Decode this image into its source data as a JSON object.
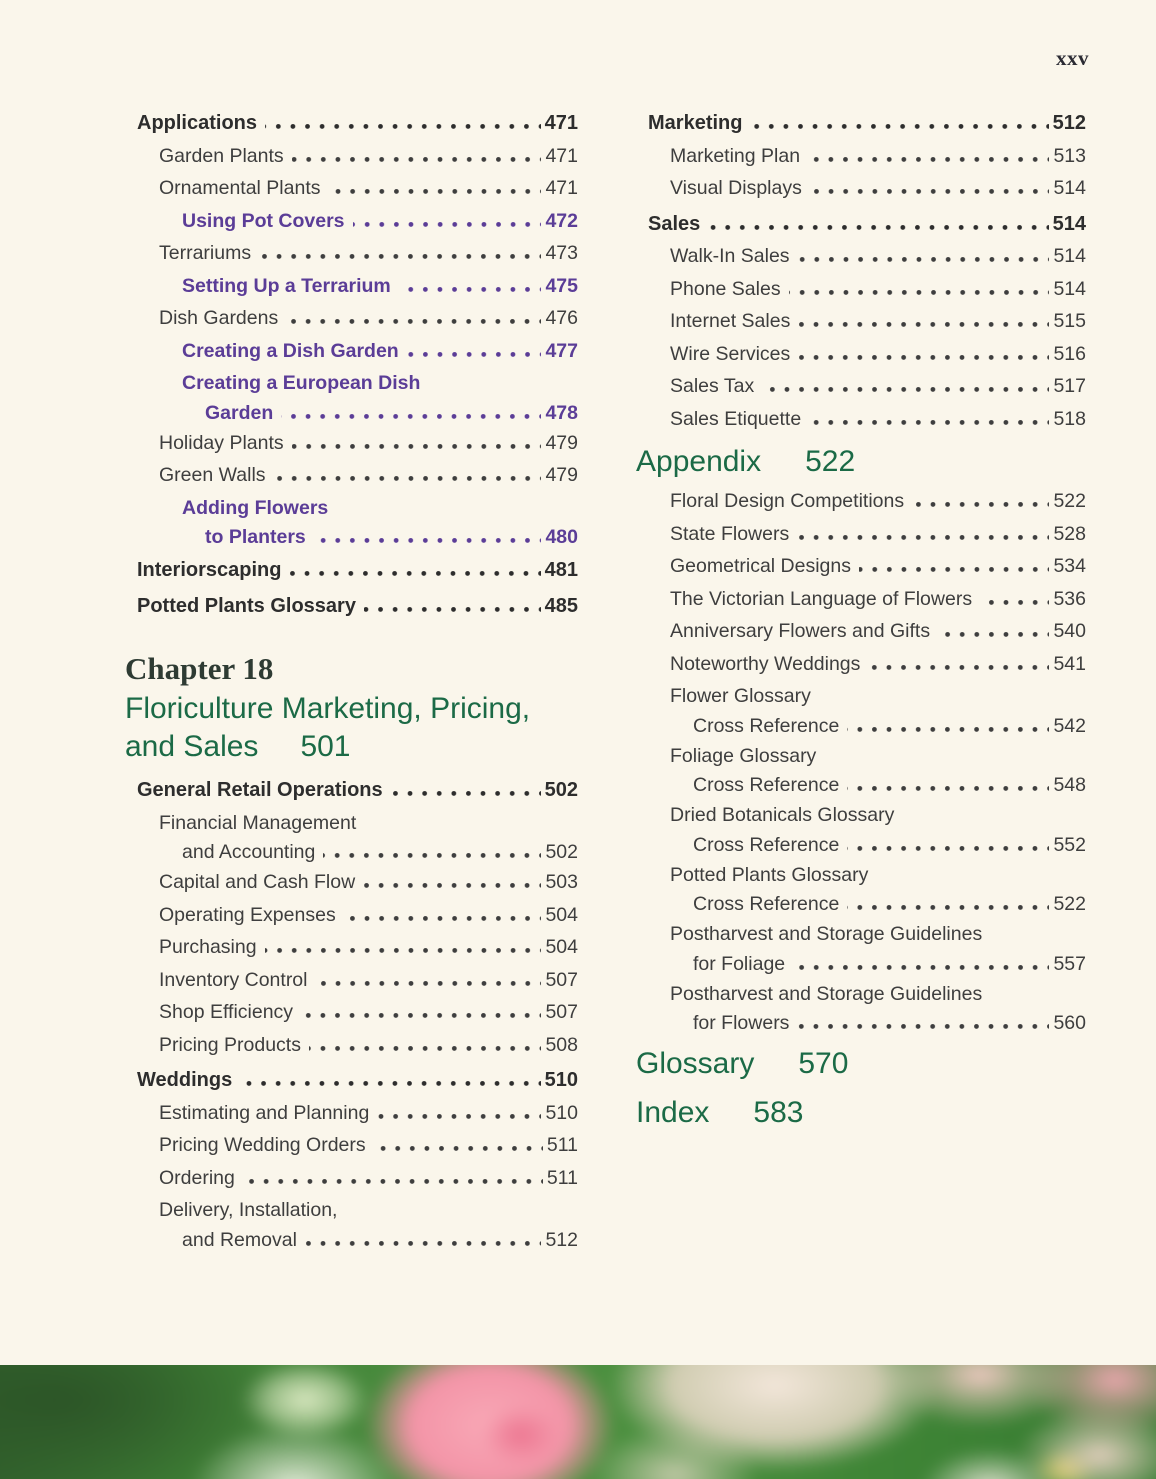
{
  "page": {
    "folio": "xxv"
  },
  "colors": {
    "background": "#faf6eb",
    "body_text": "#3e3e3e",
    "bold_heading": "#2d2d2d",
    "feature_purple": "#5b3d97",
    "part_green": "#1b6a46",
    "chapter_label": "#2e3b33"
  },
  "left_column": {
    "entries": [
      {
        "style": "main",
        "label": "Applications",
        "page": "471"
      },
      {
        "style": "sub",
        "label": "Garden Plants",
        "page": "471"
      },
      {
        "style": "sub",
        "label": "Ornamental Plants",
        "page": "471"
      },
      {
        "style": "feature",
        "label": "Using Pot Covers",
        "page": "472"
      },
      {
        "style": "sub",
        "label": "Terrariums",
        "page": "473"
      },
      {
        "style": "feature",
        "label": "Setting Up a Terrarium",
        "page": "475"
      },
      {
        "style": "sub",
        "label": "Dish Gardens",
        "page": "476"
      },
      {
        "style": "feature",
        "label": "Creating a Dish Garden",
        "page": "477"
      },
      {
        "style": "feature",
        "label": "Creating a European Dish",
        "label2": "Garden",
        "page": "478"
      },
      {
        "style": "sub",
        "label": "Holiday Plants",
        "page": "479"
      },
      {
        "style": "sub",
        "label": "Green Walls",
        "page": "479"
      },
      {
        "style": "feature",
        "label": "Adding Flowers",
        "label2": "to Planters",
        "page": "480"
      },
      {
        "style": "main",
        "label": "Interiorscaping",
        "page": "481"
      },
      {
        "style": "main",
        "label": "Potted Plants Glossary",
        "page": "485"
      },
      {
        "style": "chapter",
        "label": "Chapter 18",
        "title1": "Floriculture Marketing, Pricing,",
        "title2": "and Sales",
        "page": "501"
      },
      {
        "style": "main",
        "label": "General Retail Operations",
        "page": "502"
      },
      {
        "style": "sub",
        "label": "Financial Management",
        "label2": "and Accounting",
        "page": "502"
      },
      {
        "style": "sub",
        "label": "Capital and Cash Flow",
        "page": "503"
      },
      {
        "style": "sub",
        "label": "Operating Expenses",
        "page": "504"
      },
      {
        "style": "sub",
        "label": "Purchasing",
        "page": "504"
      },
      {
        "style": "sub",
        "label": "Inventory Control",
        "page": "507"
      },
      {
        "style": "sub",
        "label": "Shop Efficiency",
        "page": "507"
      },
      {
        "style": "sub",
        "label": "Pricing Products",
        "page": "508"
      },
      {
        "style": "main",
        "label": "Weddings",
        "page": "510"
      },
      {
        "style": "sub",
        "label": "Estimating and Planning",
        "page": "510"
      },
      {
        "style": "sub",
        "label": "Pricing Wedding Orders",
        "page": "511"
      },
      {
        "style": "sub",
        "label": "Ordering",
        "page": "511"
      },
      {
        "style": "sub",
        "label": "Delivery, Installation,",
        "label2": "and Removal",
        "page": "512"
      }
    ]
  },
  "right_column": {
    "entries": [
      {
        "style": "main",
        "label": "Marketing",
        "page": "512"
      },
      {
        "style": "sub",
        "label": "Marketing Plan",
        "page": "513"
      },
      {
        "style": "sub",
        "label": "Visual Displays",
        "page": "514"
      },
      {
        "style": "main",
        "label": "Sales",
        "page": "514"
      },
      {
        "style": "sub",
        "label": "Walk-In Sales",
        "page": "514"
      },
      {
        "style": "sub",
        "label": "Phone Sales",
        "page": "514"
      },
      {
        "style": "sub",
        "label": "Internet Sales",
        "page": "515"
      },
      {
        "style": "sub",
        "label": "Wire Services",
        "page": "516"
      },
      {
        "style": "sub",
        "label": "Sales Tax",
        "page": "517"
      },
      {
        "style": "sub",
        "label": "Sales Etiquette",
        "page": "518"
      },
      {
        "style": "part",
        "label": "Appendix",
        "page": "522"
      },
      {
        "style": "sub",
        "label": "Floral Design Competitions",
        "page": "522"
      },
      {
        "style": "sub",
        "label": "State Flowers",
        "page": "528"
      },
      {
        "style": "sub",
        "label": "Geometrical Designs",
        "page": "534"
      },
      {
        "style": "sub",
        "label": "The Victorian Language of Flowers",
        "page": "536"
      },
      {
        "style": "sub",
        "label": "Anniversary Flowers and Gifts",
        "page": "540"
      },
      {
        "style": "sub",
        "label": "Noteworthy Weddings",
        "page": "541"
      },
      {
        "style": "sub",
        "label": "Flower Glossary",
        "label2": "Cross Reference",
        "page": "542"
      },
      {
        "style": "sub",
        "label": "Foliage Glossary",
        "label2": "Cross Reference",
        "page": "548"
      },
      {
        "style": "sub",
        "label": "Dried Botanicals Glossary",
        "label2": "Cross Reference",
        "page": "552"
      },
      {
        "style": "sub",
        "label": "Potted Plants Glossary",
        "label2": "Cross Reference",
        "page": "522"
      },
      {
        "style": "sub",
        "label": "Postharvest and Storage Guidelines",
        "label2": "for Foliage",
        "page": "557"
      },
      {
        "style": "sub",
        "label": "Postharvest and Storage Guidelines",
        "label2": "for Flowers",
        "page": "560"
      },
      {
        "style": "part",
        "label": "Glossary",
        "page": "570"
      },
      {
        "style": "part",
        "label": "Index",
        "page": "583"
      }
    ]
  },
  "footer_photo": {
    "description": "Close-up photo of pink roses and pale petals against blurred green foliage"
  }
}
